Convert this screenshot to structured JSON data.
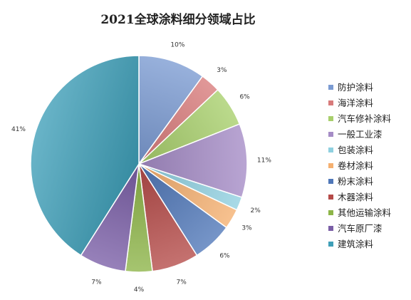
{
  "chart_data": {
    "type": "pie",
    "title": "2021全球涂料细分领域占比",
    "legend_position": "right",
    "slices": [
      {
        "label": "防护涂料",
        "value": 10,
        "display": "10%",
        "color": "#7b9bd2"
      },
      {
        "label": "海洋涂料",
        "value": 3,
        "display": "3%",
        "color": "#d87b7b"
      },
      {
        "label": "汽车修补涂料",
        "value": 6,
        "display": "6%",
        "color": "#a8cf6c"
      },
      {
        "label": "一般工业漆",
        "value": 11,
        "display": "11%",
        "color": "#a58cc6"
      },
      {
        "label": "包装涂料",
        "value": 2,
        "display": "2%",
        "color": "#8fd0e0"
      },
      {
        "label": "卷材涂料",
        "value": 3,
        "display": "3%",
        "color": "#f5b070"
      },
      {
        "label": "粉末涂料",
        "value": 6,
        "display": "6%",
        "color": "#4f77b8"
      },
      {
        "label": "木器涂料",
        "value": 7,
        "display": "7%",
        "color": "#b54a48"
      },
      {
        "label": "其他运输涂料",
        "value": 4,
        "display": "4%",
        "color": "#8db548"
      },
      {
        "label": "汽车原厂漆",
        "value": 7,
        "display": "7%",
        "color": "#7a5ea6"
      },
      {
        "label": "建筑涂料",
        "value": 41,
        "display": "41%",
        "color": "#3f9fb8"
      }
    ]
  }
}
